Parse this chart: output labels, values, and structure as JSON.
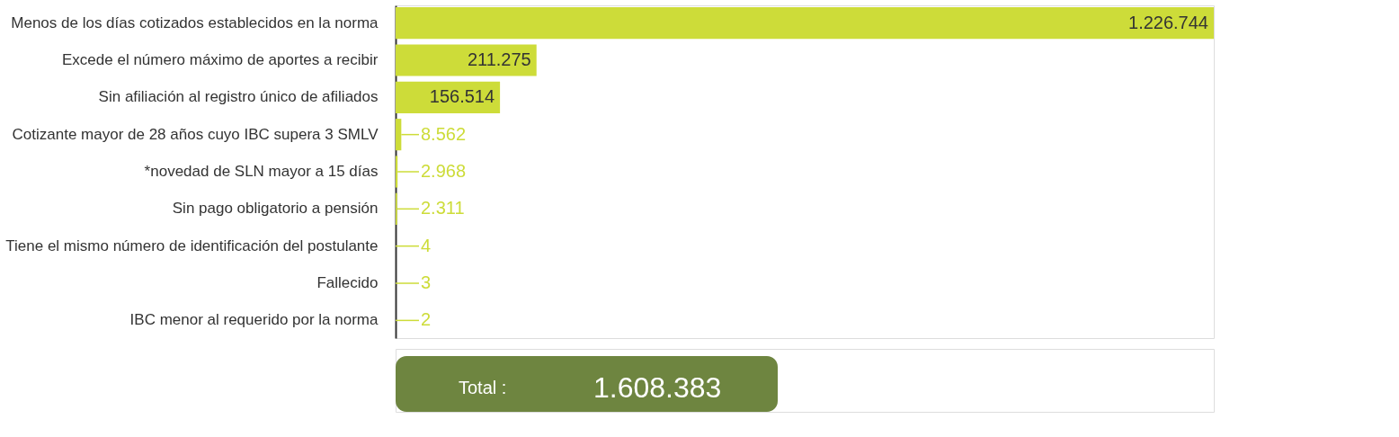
{
  "chart_data": {
    "type": "bar",
    "orientation": "horizontal",
    "tick_labels": "y",
    "color": "#cddc39",
    "categories": [
      "Menos de los días cotizados establecidos en la norma",
      "Excede el número máximo de aportes a recibir",
      "Sin afiliación al registro único de afiliados",
      "Cotizante mayor de 28 años cuyo IBC supera 3 SMLV",
      "*novedad de SLN mayor a 15 días",
      "Sin pago obligatorio a pensión",
      "Tiene el mismo número de identificación del postulante",
      "Fallecido",
      "IBC menor al requerido por la norma"
    ],
    "values": [
      1226744,
      211275,
      156514,
      8562,
      2968,
      2311,
      4,
      3,
      2
    ],
    "value_labels": [
      "1.226.744",
      "211.275",
      "156.514",
      "8.562",
      "2.968",
      "2.311",
      "4",
      "3",
      "2"
    ],
    "annotations": [
      "Total :",
      "1.608.383"
    ]
  }
}
